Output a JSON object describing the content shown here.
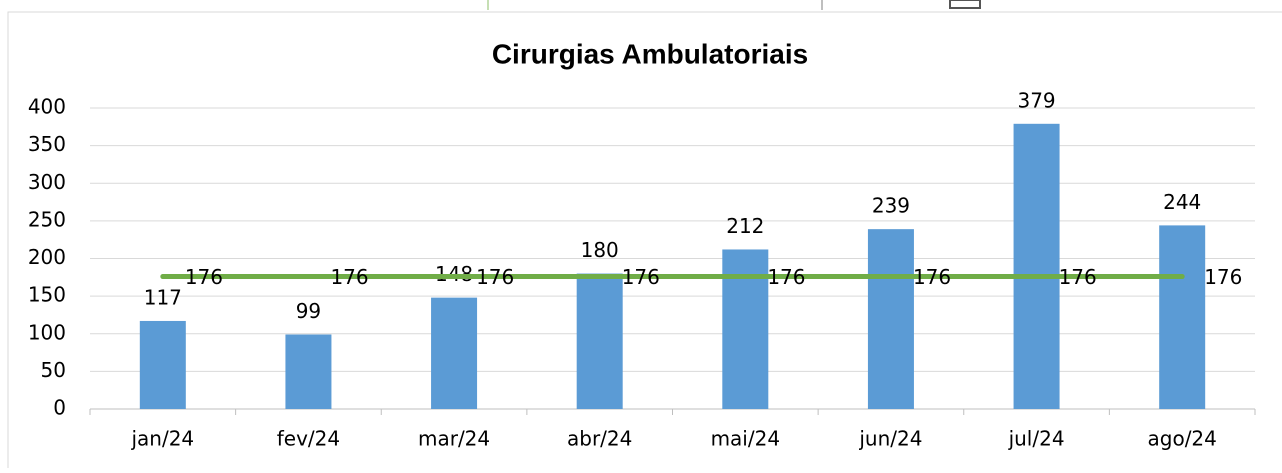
{
  "chart_data": {
    "type": "bar",
    "title": "Cirurgias Ambulatoriais",
    "categories": [
      "jan/24",
      "fev/24",
      "mar/24",
      "abr/24",
      "mai/24",
      "jun/24",
      "jul/24",
      "ago/24"
    ],
    "series": [
      {
        "type": "bar",
        "color": "#5b9bd5",
        "values": [
          117,
          99,
          148,
          180,
          212,
          239,
          379,
          244
        ]
      },
      {
        "type": "line",
        "color": "#70ad47",
        "values": [
          176,
          176,
          176,
          176,
          176,
          176,
          176,
          176
        ]
      }
    ],
    "ylim": [
      0,
      400
    ],
    "yticks": [
      0,
      50,
      100,
      150,
      200,
      250,
      300,
      350,
      400
    ],
    "grid": true
  }
}
